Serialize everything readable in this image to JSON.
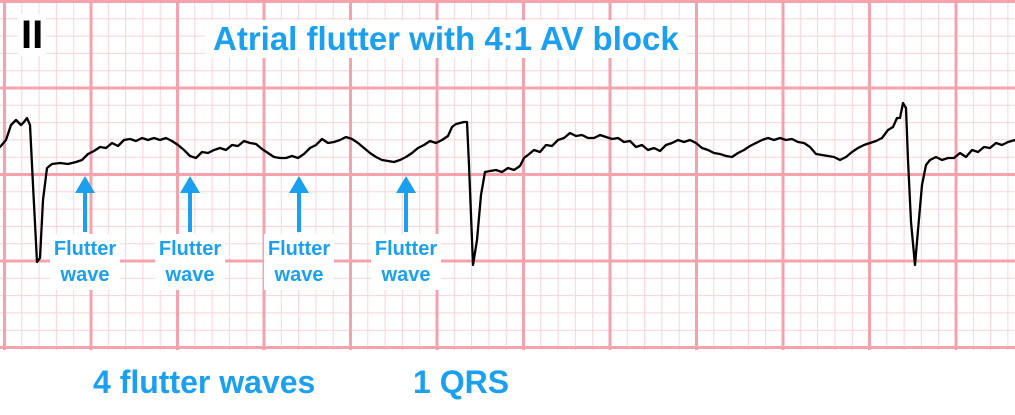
{
  "lead": "II",
  "title": "Atrial flutter with 4:1 AV block",
  "annotations": [
    {
      "line1": "Flutter",
      "line2": "wave"
    },
    {
      "line1": "Flutter",
      "line2": "wave"
    },
    {
      "line1": "Flutter",
      "line2": "wave"
    },
    {
      "line1": "Flutter",
      "line2": "wave"
    }
  ],
  "summary": {
    "flutter_count": "4 flutter waves",
    "qrs_count": "1 QRS"
  },
  "colors": {
    "grid_major": "#f4a3ad",
    "grid_minor": "#fbd3d8",
    "trace": "#000000",
    "accent": "#1aa0ee"
  }
}
